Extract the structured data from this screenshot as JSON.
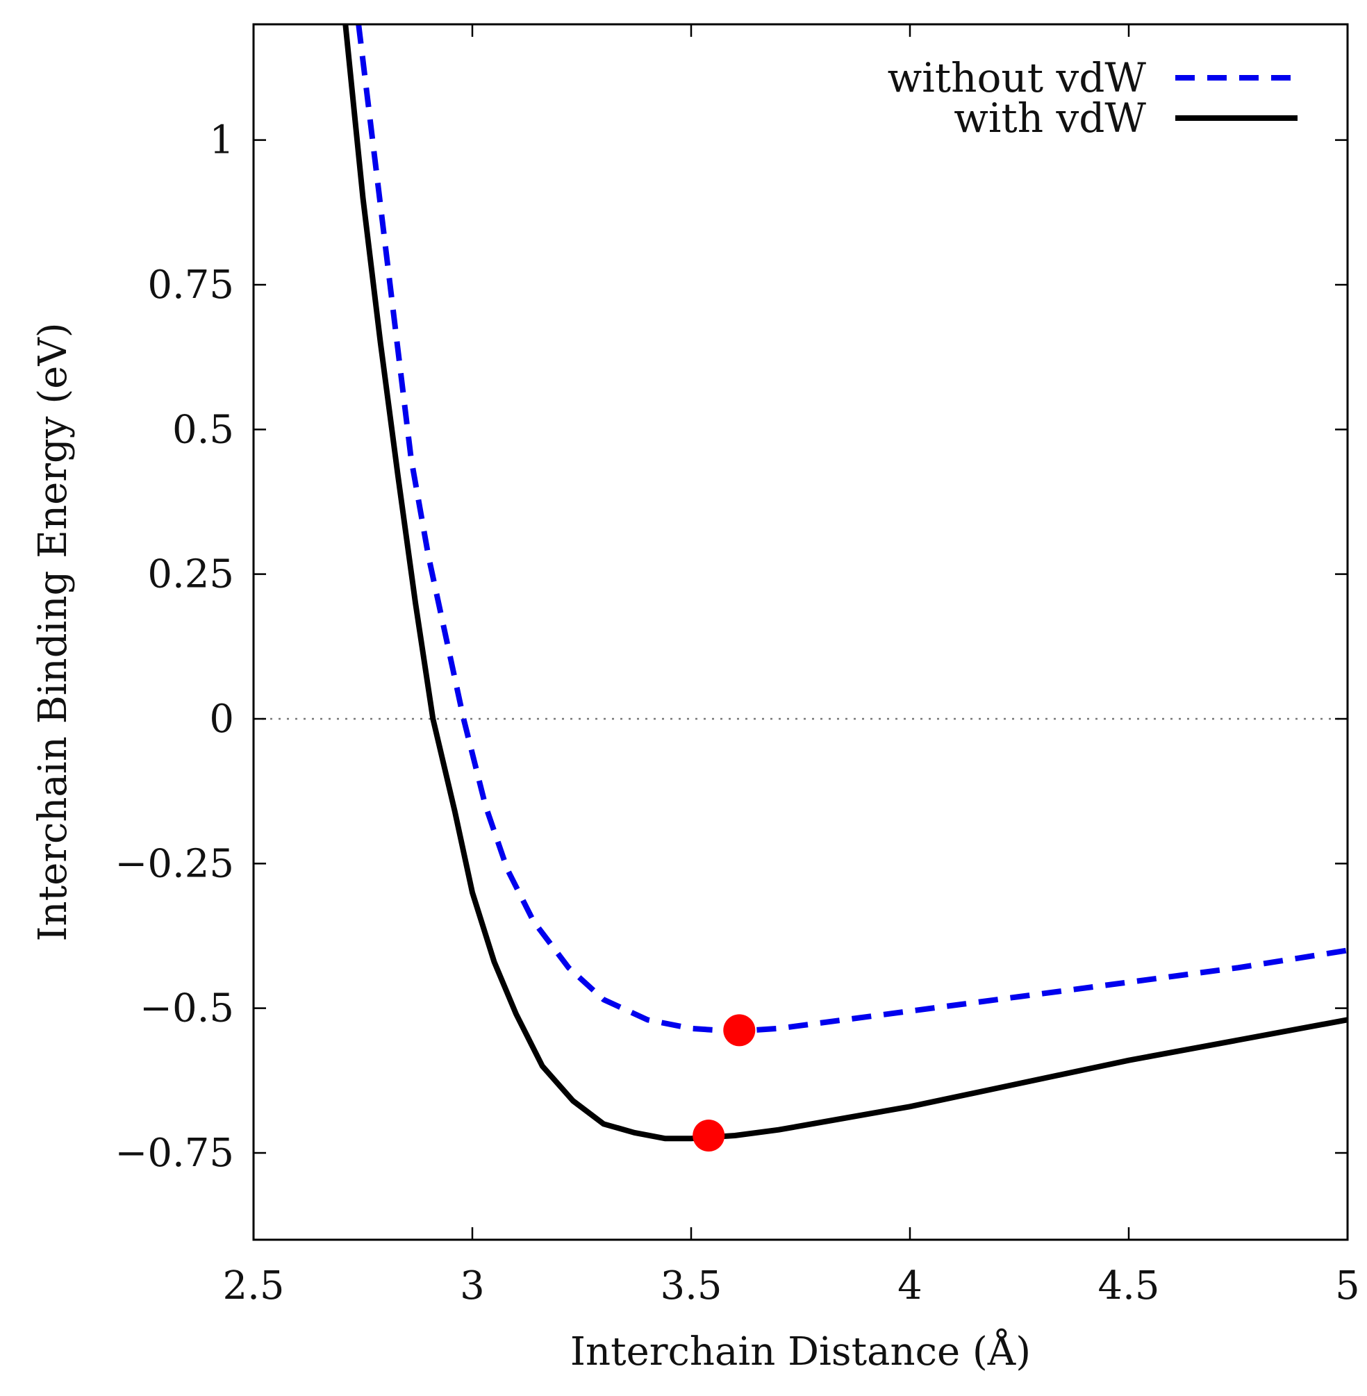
{
  "chart_data": {
    "type": "line",
    "title": "",
    "xlabel": "Interchain Distance (Å)",
    "ylabel": "Interchain Binding Energy (eV)",
    "xlim": [
      2.5,
      5
    ],
    "ylim": [
      -0.9,
      1.2
    ],
    "xticks": [
      2.5,
      3,
      3.5,
      4,
      4.5,
      5
    ],
    "xtick_labels": [
      "2.5",
      "3",
      "3.5",
      "4",
      "4.5",
      "5"
    ],
    "yticks": [
      -0.75,
      -0.5,
      -0.25,
      0,
      0.25,
      0.5,
      0.75,
      1
    ],
    "ytick_labels": [
      "−0.75",
      "−0.5",
      "−0.25",
      "0",
      "0.25",
      "0.5",
      "0.75",
      "1"
    ],
    "zero_line": true,
    "grid": false,
    "legend_position": "top-right",
    "series": [
      {
        "name": "without vdW",
        "color": "#0000ee",
        "style": "dashed",
        "x": [
          2.74,
          2.78,
          2.82,
          2.86,
          2.9,
          2.94,
          2.98,
          3.03,
          3.08,
          3.14,
          3.22,
          3.3,
          3.4,
          3.5,
          3.6,
          3.7,
          3.85,
          4.0,
          4.25,
          4.5,
          4.75,
          5.0
        ],
        "y": [
          1.2,
          0.95,
          0.7,
          0.45,
          0.28,
          0.14,
          0.0,
          -0.15,
          -0.26,
          -0.35,
          -0.43,
          -0.485,
          -0.52,
          -0.535,
          -0.54,
          -0.535,
          -0.52,
          -0.505,
          -0.48,
          -0.455,
          -0.43,
          -0.4
        ]
      },
      {
        "name": "with vdW",
        "color": "#000000",
        "style": "solid",
        "x": [
          2.71,
          2.75,
          2.79,
          2.83,
          2.87,
          2.91,
          2.96,
          3.0,
          3.05,
          3.1,
          3.16,
          3.23,
          3.3,
          3.37,
          3.44,
          3.5,
          3.6,
          3.7,
          3.85,
          4.0,
          4.25,
          4.5,
          4.75,
          5.0
        ],
        "y": [
          1.2,
          0.9,
          0.65,
          0.42,
          0.2,
          0.0,
          -0.16,
          -0.3,
          -0.42,
          -0.51,
          -0.6,
          -0.66,
          -0.7,
          -0.715,
          -0.725,
          -0.725,
          -0.72,
          -0.71,
          -0.69,
          -0.67,
          -0.63,
          -0.59,
          -0.555,
          -0.52
        ]
      }
    ],
    "annotations": [
      {
        "name": "without-vdw-minimum",
        "x": 3.61,
        "y": -0.538,
        "color": "#ff0000"
      },
      {
        "name": "with-vdw-minimum",
        "x": 3.54,
        "y": -0.72,
        "color": "#ff0000"
      }
    ]
  }
}
